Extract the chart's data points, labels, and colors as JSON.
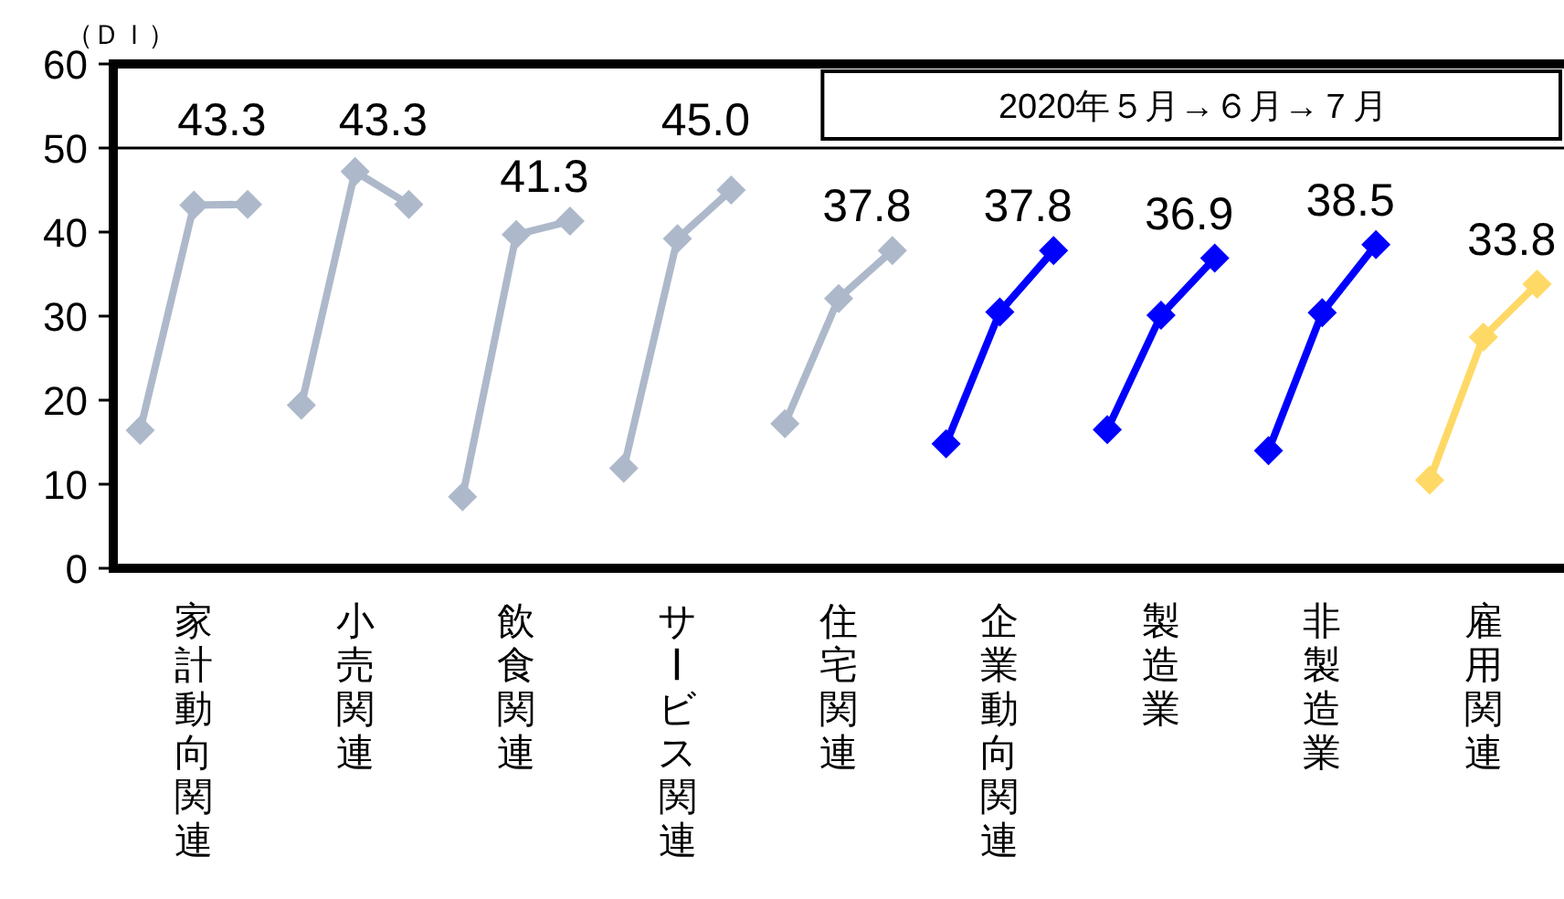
{
  "chart_data": {
    "type": "line",
    "ylabel": "（ＤＩ）",
    "categories": [
      null,
      "家計動向関連",
      null,
      null,
      "小売関連",
      null,
      null,
      "飲食関連",
      null,
      null,
      "サービス関連",
      null,
      null,
      "住宅関連",
      null,
      null,
      "企業動向関連",
      null,
      null,
      "製造業",
      null,
      null,
      "非製造業",
      null,
      null,
      "雇用関連",
      null
    ],
    "series": [
      {
        "color": "#adb9ca",
        "values": [
          16.4,
          43.2,
          43.3,
          null,
          null,
          null,
          null,
          null,
          null,
          null,
          null,
          null,
          null,
          null,
          null,
          null,
          null,
          null,
          null,
          null,
          null,
          null,
          null,
          null,
          null,
          null,
          null
        ],
        "value_labels": [
          null,
          null,
          "43.3",
          null,
          null,
          null,
          null,
          null,
          null,
          null,
          null,
          null,
          null,
          null,
          null,
          null,
          null,
          null,
          null,
          null,
          null,
          null,
          null,
          null,
          null,
          null,
          null
        ]
      },
      {
        "color": "#adb9ca",
        "values": [
          null,
          null,
          null,
          19.4,
          47.2,
          43.3,
          null,
          null,
          null,
          null,
          null,
          null,
          null,
          null,
          null,
          null,
          null,
          null,
          null,
          null,
          null,
          null,
          null,
          null,
          null,
          null,
          null
        ],
        "value_labels": [
          null,
          null,
          null,
          null,
          null,
          "43.3",
          null,
          null,
          null,
          null,
          null,
          null,
          null,
          null,
          null,
          null,
          null,
          null,
          null,
          null,
          null,
          null,
          null,
          null,
          null,
          null,
          null
        ]
      },
      {
        "color": "#adb9ca",
        "values": [
          null,
          null,
          null,
          null,
          null,
          null,
          8.5,
          39.7,
          41.3,
          null,
          null,
          null,
          null,
          null,
          null,
          null,
          null,
          null,
          null,
          null,
          null,
          null,
          null,
          null,
          null,
          null,
          null
        ],
        "value_labels": [
          null,
          null,
          null,
          null,
          null,
          null,
          null,
          null,
          "41.3",
          null,
          null,
          null,
          null,
          null,
          null,
          null,
          null,
          null,
          null,
          null,
          null,
          null,
          null,
          null,
          null,
          null,
          null
        ]
      },
      {
        "color": "#adb9ca",
        "values": [
          null,
          null,
          null,
          null,
          null,
          null,
          null,
          null,
          null,
          11.9,
          39.2,
          45.0,
          null,
          null,
          null,
          null,
          null,
          null,
          null,
          null,
          null,
          null,
          null,
          null,
          null,
          null,
          null
        ],
        "value_labels": [
          null,
          null,
          null,
          null,
          null,
          null,
          null,
          null,
          null,
          null,
          null,
          "45.0",
          null,
          null,
          null,
          null,
          null,
          null,
          null,
          null,
          null,
          null,
          null,
          null,
          null,
          null,
          null
        ]
      },
      {
        "color": "#adb9ca",
        "values": [
          null,
          null,
          null,
          null,
          null,
          null,
          null,
          null,
          null,
          null,
          null,
          null,
          17.2,
          32.1,
          37.8,
          null,
          null,
          null,
          null,
          null,
          null,
          null,
          null,
          null,
          null,
          null,
          null
        ],
        "value_labels": [
          null,
          null,
          null,
          null,
          null,
          null,
          null,
          null,
          null,
          null,
          null,
          null,
          null,
          null,
          "37.8",
          null,
          null,
          null,
          null,
          null,
          null,
          null,
          null,
          null,
          null,
          null,
          null
        ]
      },
      {
        "color": "#0000ff",
        "values": [
          null,
          null,
          null,
          null,
          null,
          null,
          null,
          null,
          null,
          null,
          null,
          null,
          null,
          null,
          null,
          14.8,
          30.5,
          37.8,
          null,
          null,
          null,
          null,
          null,
          null,
          null,
          null,
          null
        ],
        "value_labels": [
          null,
          null,
          null,
          null,
          null,
          null,
          null,
          null,
          null,
          null,
          null,
          null,
          null,
          null,
          null,
          null,
          null,
          "37.8",
          null,
          null,
          null,
          null,
          null,
          null,
          null,
          null,
          null
        ]
      },
      {
        "color": "#0000ff",
        "values": [
          null,
          null,
          null,
          null,
          null,
          null,
          null,
          null,
          null,
          null,
          null,
          null,
          null,
          null,
          null,
          null,
          null,
          null,
          16.5,
          30.1,
          36.9,
          null,
          null,
          null,
          null,
          null,
          null
        ],
        "value_labels": [
          null,
          null,
          null,
          null,
          null,
          null,
          null,
          null,
          null,
          null,
          null,
          null,
          null,
          null,
          null,
          null,
          null,
          null,
          null,
          null,
          "36.9",
          null,
          null,
          null,
          null,
          null,
          null
        ]
      },
      {
        "color": "#0000ff",
        "values": [
          null,
          null,
          null,
          null,
          null,
          null,
          null,
          null,
          null,
          null,
          null,
          null,
          null,
          null,
          null,
          null,
          null,
          null,
          null,
          null,
          null,
          14.0,
          30.4,
          38.5,
          null,
          null,
          null
        ],
        "value_labels": [
          null,
          null,
          null,
          null,
          null,
          null,
          null,
          null,
          null,
          null,
          null,
          null,
          null,
          null,
          null,
          null,
          null,
          null,
          null,
          null,
          null,
          null,
          null,
          "38.5",
          null,
          null,
          null
        ]
      },
      {
        "color": "#ffd966",
        "values": [
          null,
          null,
          null,
          null,
          null,
          null,
          null,
          null,
          null,
          null,
          null,
          null,
          null,
          null,
          null,
          null,
          null,
          null,
          null,
          null,
          null,
          null,
          null,
          null,
          10.5,
          27.5,
          33.8
        ],
        "value_labels": [
          null,
          null,
          null,
          null,
          null,
          null,
          null,
          null,
          null,
          null,
          null,
          null,
          null,
          null,
          null,
          null,
          null,
          null,
          null,
          null,
          null,
          null,
          null,
          null,
          null,
          null,
          "33.8"
        ]
      }
    ],
    "ylim": [
      0,
      60
    ],
    "yticks": [
      0,
      10,
      20,
      30,
      40,
      50,
      60
    ],
    "ref_lines": [
      {
        "axis": "y",
        "value": 50
      }
    ],
    "annotations": [
      "2020年５月→６月→７月"
    ],
    "marker": "diamond"
  }
}
